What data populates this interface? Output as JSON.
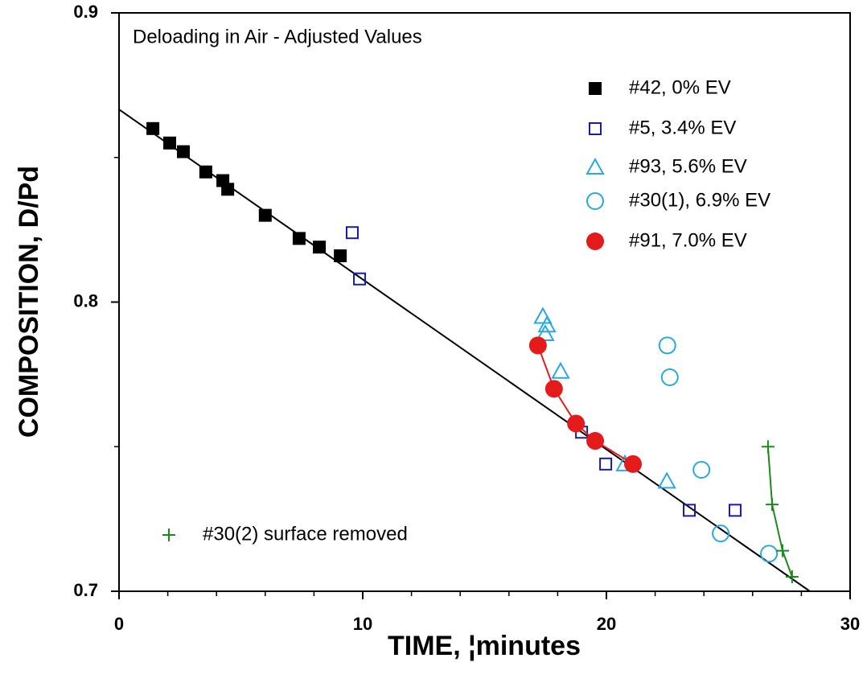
{
  "chart_data": {
    "type": "scatter",
    "annotation": "Deloading in Air - Adjusted Values",
    "xlabel": "TIME, ¦minutes",
    "ylabel": "COMPOSITION, D/Pd",
    "xlim": [
      0,
      30
    ],
    "ylim": [
      0.7,
      0.9
    ],
    "xticks": [
      0,
      10,
      20,
      30
    ],
    "yticks": [
      0.7,
      0.8,
      0.9
    ],
    "x_minor_ticks": [
      2,
      4,
      6,
      8,
      12,
      14,
      16,
      18,
      22,
      24,
      26,
      28
    ],
    "y_minor_ticks": [
      0.75,
      0.85
    ],
    "fit_line": {
      "color": "#000000",
      "x": [
        0,
        28.35
      ],
      "y": [
        0.8666,
        0.7
      ]
    },
    "series": [
      {
        "name": "#42, 0% EV",
        "color": "#000000",
        "marker": "square-filled",
        "x": [
          1.39,
          2.08,
          2.64,
          3.56,
          4.26,
          4.46,
          6.0,
          7.39,
          8.22,
          9.08
        ],
        "y": [
          0.86,
          0.855,
          0.852,
          0.845,
          0.842,
          0.839,
          0.83,
          0.822,
          0.819,
          0.816
        ]
      },
      {
        "name": "#5, 3.4% EV",
        "color": "#1a1aa8",
        "marker": "square",
        "x": [
          9.57,
          9.87,
          18.98,
          19.97,
          23.4,
          25.28
        ],
        "y": [
          0.824,
          0.808,
          0.755,
          0.744,
          0.728,
          0.728
        ]
      },
      {
        "name": "#93, 5.6% EV",
        "color": "#29a8e0",
        "marker": "triangle",
        "x": [
          17.39,
          17.56,
          17.49,
          18.12,
          20.76,
          22.48
        ],
        "y": [
          0.795,
          0.792,
          0.789,
          0.776,
          0.744,
          0.738
        ]
      },
      {
        "name": "#30(1), 6.9% EV",
        "color": "#29a8e0",
        "marker": "circle",
        "x": [
          22.5,
          22.6,
          23.9,
          24.69,
          26.67
        ],
        "y": [
          0.785,
          0.774,
          0.742,
          0.72,
          0.713
        ]
      },
      {
        "name": "#91, 7.0% EV",
        "color": "#e41b1b",
        "marker": "circle-filled",
        "line": true,
        "x": [
          17.19,
          17.85,
          18.75,
          19.54,
          21.09
        ],
        "y": [
          0.785,
          0.77,
          0.758,
          0.752,
          0.744
        ]
      },
      {
        "name": "#30(2) surface removed",
        "color": "#1b8a1b",
        "marker": "plus",
        "line": true,
        "x": [
          26.63,
          26.8,
          27.23,
          27.62
        ],
        "y": [
          0.75,
          0.73,
          0.714,
          0.705
        ]
      }
    ]
  }
}
